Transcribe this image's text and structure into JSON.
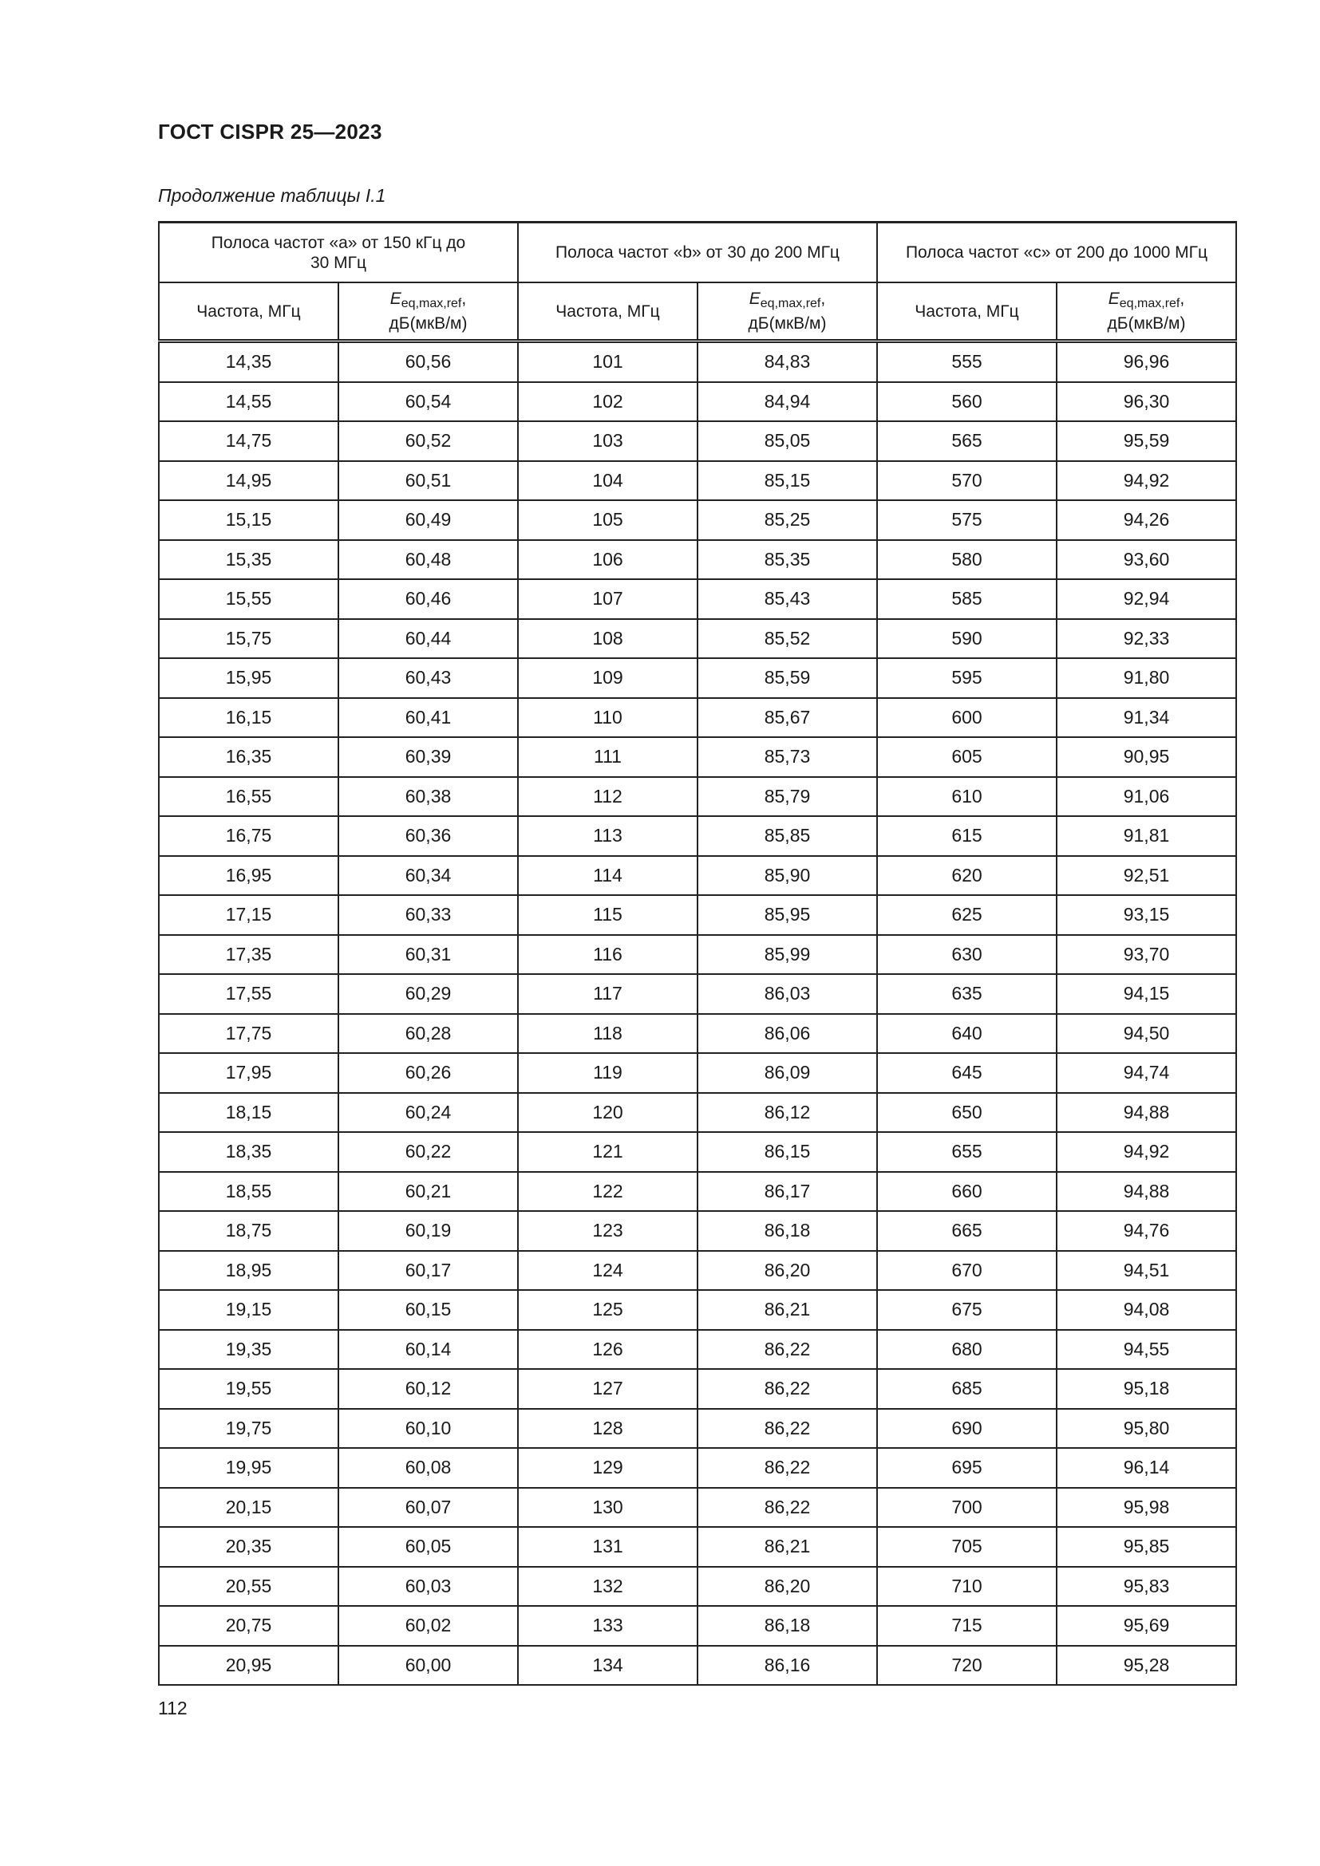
{
  "header": {
    "doc_title": "ГОСТ CISPR 25—2023"
  },
  "caption": "Продолжение таблицы I.1",
  "table": {
    "bands": [
      "Полоса частот «а» от 150 кГц до 30 МГц",
      "Полоса частот «b» от 30 до 200 МГц",
      "Полоса частот «c» от 200 до 1000 МГц"
    ],
    "freq_header": "Частота, МГц",
    "e_symbol": "E",
    "e_subscript": "eq,max,ref",
    "e_unit": "дБ(мкВ/м)",
    "rows": [
      [
        "14,35",
        "60,56",
        "101",
        "84,83",
        "555",
        "96,96"
      ],
      [
        "14,55",
        "60,54",
        "102",
        "84,94",
        "560",
        "96,30"
      ],
      [
        "14,75",
        "60,52",
        "103",
        "85,05",
        "565",
        "95,59"
      ],
      [
        "14,95",
        "60,51",
        "104",
        "85,15",
        "570",
        "94,92"
      ],
      [
        "15,15",
        "60,49",
        "105",
        "85,25",
        "575",
        "94,26"
      ],
      [
        "15,35",
        "60,48",
        "106",
        "85,35",
        "580",
        "93,60"
      ],
      [
        "15,55",
        "60,46",
        "107",
        "85,43",
        "585",
        "92,94"
      ],
      [
        "15,75",
        "60,44",
        "108",
        "85,52",
        "590",
        "92,33"
      ],
      [
        "15,95",
        "60,43",
        "109",
        "85,59",
        "595",
        "91,80"
      ],
      [
        "16,15",
        "60,41",
        "110",
        "85,67",
        "600",
        "91,34"
      ],
      [
        "16,35",
        "60,39",
        "111",
        "85,73",
        "605",
        "90,95"
      ],
      [
        "16,55",
        "60,38",
        "112",
        "85,79",
        "610",
        "91,06"
      ],
      [
        "16,75",
        "60,36",
        "113",
        "85,85",
        "615",
        "91,81"
      ],
      [
        "16,95",
        "60,34",
        "114",
        "85,90",
        "620",
        "92,51"
      ],
      [
        "17,15",
        "60,33",
        "115",
        "85,95",
        "625",
        "93,15"
      ],
      [
        "17,35",
        "60,31",
        "116",
        "85,99",
        "630",
        "93,70"
      ],
      [
        "17,55",
        "60,29",
        "117",
        "86,03",
        "635",
        "94,15"
      ],
      [
        "17,75",
        "60,28",
        "118",
        "86,06",
        "640",
        "94,50"
      ],
      [
        "17,95",
        "60,26",
        "119",
        "86,09",
        "645",
        "94,74"
      ],
      [
        "18,15",
        "60,24",
        "120",
        "86,12",
        "650",
        "94,88"
      ],
      [
        "18,35",
        "60,22",
        "121",
        "86,15",
        "655",
        "94,92"
      ],
      [
        "18,55",
        "60,21",
        "122",
        "86,17",
        "660",
        "94,88"
      ],
      [
        "18,75",
        "60,19",
        "123",
        "86,18",
        "665",
        "94,76"
      ],
      [
        "18,95",
        "60,17",
        "124",
        "86,20",
        "670",
        "94,51"
      ],
      [
        "19,15",
        "60,15",
        "125",
        "86,21",
        "675",
        "94,08"
      ],
      [
        "19,35",
        "60,14",
        "126",
        "86,22",
        "680",
        "94,55"
      ],
      [
        "19,55",
        "60,12",
        "127",
        "86,22",
        "685",
        "95,18"
      ],
      [
        "19,75",
        "60,10",
        "128",
        "86,22",
        "690",
        "95,80"
      ],
      [
        "19,95",
        "60,08",
        "129",
        "86,22",
        "695",
        "96,14"
      ],
      [
        "20,15",
        "60,07",
        "130",
        "86,22",
        "700",
        "95,98"
      ],
      [
        "20,35",
        "60,05",
        "131",
        "86,21",
        "705",
        "95,85"
      ],
      [
        "20,55",
        "60,03",
        "132",
        "86,20",
        "710",
        "95,83"
      ],
      [
        "20,75",
        "60,02",
        "133",
        "86,18",
        "715",
        "95,69"
      ],
      [
        "20,95",
        "60,00",
        "134",
        "86,16",
        "720",
        "95,28"
      ]
    ]
  },
  "footer": {
    "page_number": "112"
  }
}
